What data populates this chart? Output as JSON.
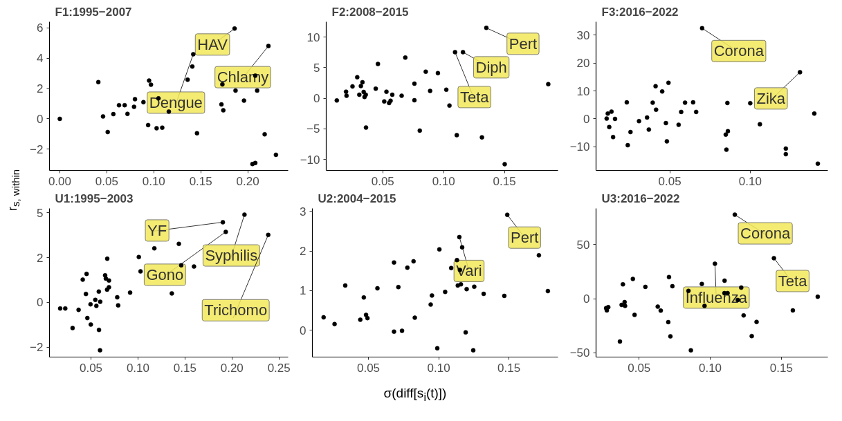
{
  "chart_data": [
    {
      "type": "scatter",
      "title": "F1:1995−2007",
      "marker": "circle",
      "xlim": [
        -0.011,
        0.243
      ],
      "ylim": [
        -3.4,
        6.4
      ],
      "xticks": [
        {
          "value": 0,
          "label": "0.00"
        },
        0.05,
        {
          "value": 0.1,
          "label": "0.10"
        },
        0.15,
        {
          "value": 0.2,
          "label": "0.20"
        }
      ],
      "yticks": [
        -2,
        0,
        2,
        4,
        6
      ],
      "series": [
        {
          "color": "#000000",
          "x": [
            0,
            0.041,
            0.046,
            0.051,
            0.057,
            0.063,
            0.069,
            0.072,
            0.079,
            0.08,
            0.089,
            0.094,
            0.095,
            0.097,
            0.103,
            0.105,
            0.109,
            0.116,
            0.136,
            0.141,
            0.142,
            0.146,
            0.172,
            0.173,
            0.174,
            0.186,
            0.187,
            0.196,
            0.205,
            0.208,
            0.208,
            0.21,
            0.218,
            0.222,
            0.23
          ],
          "values": [
            0,
            2.42,
            0.16,
            -0.87,
            0.31,
            0.9,
            0.9,
            0.33,
            0.79,
            1.3,
            1.1,
            -0.41,
            2.52,
            2.25,
            -0.62,
            1.35,
            -0.58,
            0.48,
            2.58,
            3.45,
            4.26,
            -0.95,
            0.95,
            2.27,
            0.56,
            5.95,
            1.86,
            1.2,
            -2.98,
            2.85,
            -2.91,
            1.86,
            -1.02,
            4.8,
            -2.37
          ]
        }
      ],
      "annotations": [
        {
          "text": "HAV",
          "x": 0.186,
          "y": 5.95
        },
        {
          "text": "Chlamy",
          "x": 0.222,
          "y": 4.8
        },
        {
          "text": "Dengue",
          "x": 0.142,
          "y": 4.26
        }
      ]
    },
    {
      "type": "scatter",
      "title": "F2:2008−2015",
      "marker": "circle",
      "xlim": [
        0.0035,
        0.194
      ],
      "ylim": [
        -11.8,
        12.5
      ],
      "xticks": [
        0.05,
        {
          "value": 0.1,
          "label": "0.10"
        },
        0.15
      ],
      "yticks": [
        -10,
        -5,
        0,
        5,
        10
      ],
      "series": [
        {
          "color": "#000000",
          "x": [
            0.0122,
            0.0198,
            0.0202,
            0.0251,
            0.029,
            0.0307,
            0.032,
            0.0333,
            0.0343,
            0.035,
            0.036,
            0.0362,
            0.0442,
            0.046,
            0.0512,
            0.053,
            0.0552,
            0.0564,
            0.0578,
            0.0655,
            0.0685,
            0.076,
            0.076,
            0.0804,
            0.0853,
            0.0889,
            0.0953,
            0.1022,
            0.1048,
            0.1094,
            0.1108,
            0.1159,
            0.1315,
            0.1351,
            0.1502,
            0.186
          ],
          "values": [
            -0.37,
            1.07,
            0.41,
            1.93,
            3.44,
            0.57,
            2.0,
            2.62,
            1.02,
            0.2,
            0.57,
            -4.8,
            1.56,
            5.6,
            -0.53,
            1.07,
            -0.78,
            -0.41,
            0.57,
            0.41,
            6.64,
            2.38,
            -0.33,
            -5.29,
            4.34,
            1.19,
            4.1,
            1.39,
            -1.19,
            7.54,
            -6.04,
            7.54,
            -6.39,
            11.5,
            -10.78,
            2.3
          ]
        }
      ],
      "annotations": [
        {
          "text": "Pert",
          "x": 0.1351,
          "y": 11.5
        },
        {
          "text": "Diph",
          "x": 0.1159,
          "y": 7.54
        },
        {
          "text": "Teta",
          "x": 0.1094,
          "y": 7.54
        }
      ]
    },
    {
      "type": "scatter",
      "title": "F3:2016−2022",
      "marker": "circle",
      "xlim": [
        0.0042,
        0.1482
      ],
      "ylim": [
        -18.4,
        34.7
      ],
      "xticks": [
        0.05,
        {
          "value": 0.1,
          "label": "0.10"
        }
      ],
      "yticks": [
        -10,
        0,
        10,
        20,
        30
      ],
      "series": [
        {
          "color": "#000000",
          "x": [
            0.0108,
            0.0115,
            0.0124,
            0.0138,
            0.0148,
            0.016,
            0.0233,
            0.0239,
            0.0256,
            0.0309,
            0.0359,
            0.037,
            0.0394,
            0.0412,
            0.0415,
            0.0453,
            0.0476,
            0.0482,
            0.0492,
            0.0555,
            0.0571,
            0.0595,
            0.0645,
            0.0664,
            0.0701,
            0.0848,
            0.0852,
            0.0858,
            0.0861,
            0.1,
            0.106,
            0.1221,
            0.1221,
            0.1309,
            0.1398,
            0.142
          ],
          "values": [
            0.1,
            1.9,
            -2.9,
            2.6,
            -6.5,
            0,
            5.9,
            -9.4,
            -4.7,
            -0.8,
            0.5,
            -3.8,
            5.8,
            11.7,
            3.3,
            9.8,
            -1.5,
            -8.0,
            12.9,
            -2.1,
            2.5,
            5.8,
            5.9,
            2.5,
            32.4,
            -5.6,
            -11.0,
            5.7,
            -4.4,
            5.6,
            -1.9,
            -10.6,
            -12.6,
            16.7,
            1.9,
            -16.0
          ]
        }
      ],
      "annotations": [
        {
          "text": "Corona",
          "x": 0.0701,
          "y": 32.4
        },
        {
          "text": "Zika",
          "x": 0.1309,
          "y": 16.7
        }
      ]
    },
    {
      "type": "scatter",
      "title": "U1:1995−2003",
      "ylabel": "r$_{s, within}$",
      "marker": "circle",
      "xlim": [
        0.0058,
        0.2598
      ],
      "ylim": [
        -3.06,
        5.25
      ],
      "xticks": [
        0.05,
        {
          "value": 0.1,
          "label": "0.10"
        },
        0.15,
        {
          "value": 0.2,
          "label": "0.20"
        },
        0.25
      ],
      "yticks": [
        {
          "value": -2.5,
          "label": "−2"
        },
        0,
        {
          "value": 2.5,
          "label": "2"
        },
        5
      ],
      "series": [
        {
          "color": "#000000",
          "x": [
            0.0172,
            0.0226,
            0.0304,
            0.0368,
            0.0412,
            0.0446,
            0.0453,
            0.0461,
            0.0495,
            0.0498,
            0.0546,
            0.0557,
            0.0583,
            0.0585,
            0.0596,
            0.0598,
            0.065,
            0.0658,
            0.0671,
            0.0673,
            0.0691,
            0.0691,
            0.0779,
            0.0789,
            0.0916,
            0.1009,
            0.1027,
            0.1174,
            0.136,
            0.1435,
            0.146,
            0.1596,
            0.1903,
            0.1934,
            0.2133,
            0.2386
          ],
          "values": [
            -0.34,
            -0.34,
            -1.44,
            -0.42,
            1.27,
            0.47,
            1.59,
            -0.88,
            -0.11,
            -1.24,
            0.14,
            -0.2,
            0.6,
            -1.54,
            -2.68,
            0.03,
            1.51,
            1.33,
            0.71,
            2.44,
            0.84,
            1.22,
            0.28,
            -0.17,
            0.54,
            2.53,
            1.73,
            3.02,
            0.5,
            3.27,
            2.07,
            2.0,
            4.48,
            3.94,
            4.9,
            3.77
          ]
        }
      ],
      "annotations": [
        {
          "text": "YF",
          "x": 0.1903,
          "y": 4.48
        },
        {
          "text": "Gono",
          "x": 0.1934,
          "y": 3.94
        },
        {
          "text": "Syphilis",
          "x": 0.2133,
          "y": 4.9
        },
        {
          "text": "Trichomo",
          "x": 0.2386,
          "y": 3.77
        }
      ]
    },
    {
      "type": "scatter",
      "title": "U2:2004−2015",
      "xlabel": "σ(diff[s$_{i}$(t)])",
      "marker": "circle",
      "xlim": [
        0.0101,
        0.1849
      ],
      "ylim": [
        -0.67,
        3.07
      ],
      "xticks": [
        0.05,
        {
          "value": 0.1,
          "label": "0.10"
        },
        0.15
      ],
      "yticks": [
        0,
        1,
        2,
        3
      ],
      "series": [
        {
          "color": "#000000",
          "x": [
            0.0181,
            0.0259,
            0.0335,
            0.0442,
            0.0467,
            0.0483,
            0.0493,
            0.0564,
            0.0682,
            0.0682,
            0.0713,
            0.0739,
            0.0777,
            0.0821,
            0.083,
            0.0943,
            0.0952,
            0.099,
            0.1005,
            0.1046,
            0.1089,
            0.113,
            0.1136,
            0.1147,
            0.1151,
            0.1158,
            0.1167,
            0.1192,
            0.1199,
            0.1246,
            0.1253,
            0.132,
            0.1467,
            0.1488,
            0.1713,
            0.1777
          ],
          "values": [
            0.33,
            0.16,
            1.13,
            0.27,
            0.83,
            0.39,
            0.31,
            1.06,
            1.71,
            -0.03,
            1.09,
            -0.01,
            1.58,
            1.74,
            0.32,
            0.65,
            0.88,
            -0.45,
            2.04,
            0.97,
            1.57,
            1.77,
            1.13,
            2.35,
            1.52,
            1.16,
            2.09,
            -0.05,
            1.04,
            -0.5,
            1.1,
            0.92,
            0.87,
            2.91,
            1.89,
            0.99
          ]
        }
      ],
      "annotations": [
        {
          "text": "Pert",
          "x": 0.1488,
          "y": 2.91
        },
        {
          "text": "Vari",
          "x": 0.1147,
          "y": 2.35
        }
      ]
    },
    {
      "type": "scatter",
      "title": "U3:2016−2022",
      "marker": "circle",
      "xlim": [
        0.0197,
        0.1827
      ],
      "ylim": [
        -54,
        83.4
      ],
      "xticks": [
        0.05,
        {
          "value": 0.1,
          "label": "0.10"
        },
        0.15
      ],
      "yticks": [
        -50,
        0,
        50
      ],
      "series": [
        {
          "color": "#000000",
          "x": [
            0.0268,
            0.0273,
            0.0283,
            0.0365,
            0.0377,
            0.0386,
            0.0398,
            0.0401,
            0.0456,
            0.0468,
            0.0544,
            0.0631,
            0.0652,
            0.0705,
            0.071,
            0.072,
            0.0734,
            0.0847,
            0.0864,
            0.0941,
            0.096,
            0.1033,
            0.1101,
            0.11,
            0.1122,
            0.1173,
            0.1194,
            0.1218,
            0.1235,
            0.1292,
            0.1326,
            0.1448,
            0.1581,
            0.1756
          ],
          "values": [
            -8.8,
            -10.9,
            -7.9,
            -39.7,
            -5.8,
            13.2,
            -3.2,
            -6.7,
            18.2,
            -15.0,
            10.9,
            -7.4,
            -11.1,
            -21.7,
            19.9,
            -34.9,
            11.5,
            7.2,
            -47.8,
            13.6,
            -6.7,
            32.3,
            16.6,
            5.1,
            5.1,
            77.6,
            -1.2,
            10.2,
            -15.5,
            -34.6,
            -21.5,
            37.4,
            -10.9,
            1.8
          ]
        }
      ],
      "annotations": [
        {
          "text": "Corona",
          "x": 0.1173,
          "y": 77.6
        },
        {
          "text": "Influenza",
          "x": 0.1033,
          "y": 32.3
        },
        {
          "text": "Teta",
          "x": 0.1448,
          "y": 37.4
        }
      ]
    }
  ]
}
